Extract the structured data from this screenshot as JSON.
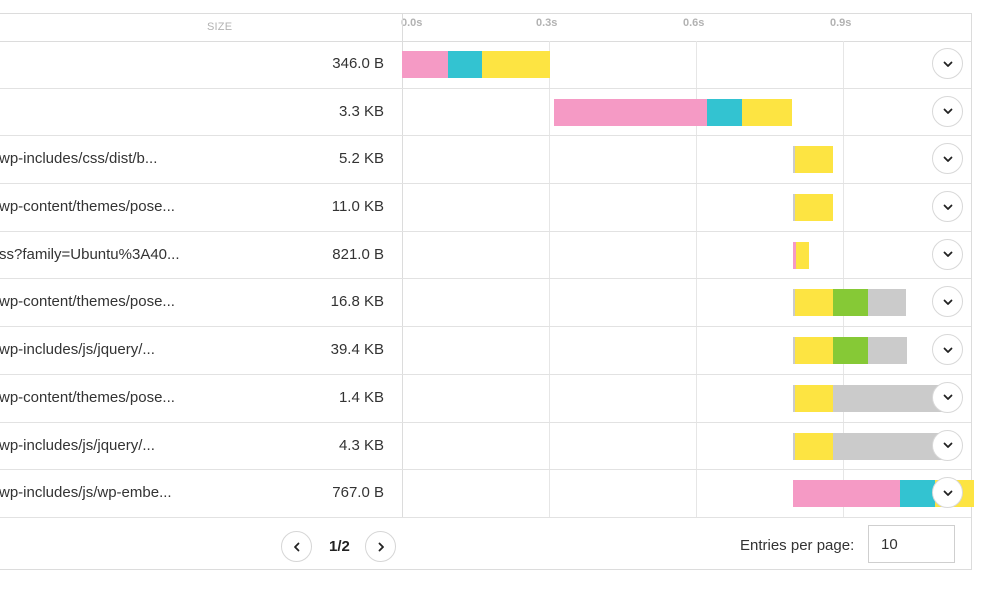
{
  "header": {
    "size_label": "SIZE",
    "ticks": [
      {
        "label": "0.0s"
      },
      {
        "label": "0.3s"
      },
      {
        "label": "0.6s"
      },
      {
        "label": "0.9s"
      }
    ]
  },
  "colors": {
    "phase_a": "#f59ac5",
    "phase_b": "#33c3d1",
    "phase_c": "#fde442",
    "phase_d": "#86c936",
    "phase_e": "#cbcbcb"
  },
  "timeline": {
    "scale_per_second": 490,
    "origin_offset": 403
  },
  "rows": [
    {
      "url": "",
      "size": "346.0 B",
      "start": 0.0,
      "phases": [
        [
          "phase_a",
          0.093
        ],
        [
          "phase_b",
          0.071
        ],
        [
          "phase_c",
          0.138
        ]
      ]
    },
    {
      "url": "",
      "size": "3.3 KB",
      "start": 0.31,
      "phases": [
        [
          "phase_a",
          0.312
        ],
        [
          "phase_b",
          0.071
        ],
        [
          "phase_c",
          0.102
        ]
      ]
    },
    {
      "url": "wp-includes/css/dist/b...",
      "size": "5.2 KB",
      "start": 0.798,
      "phases": [
        [
          "phase_e",
          0.004
        ],
        [
          "phase_c",
          0.078
        ]
      ]
    },
    {
      "url": "wp-content/themes/pose...",
      "size": "11.0 KB",
      "start": 0.798,
      "phases": [
        [
          "phase_e",
          0.004
        ],
        [
          "phase_c",
          0.078
        ]
      ]
    },
    {
      "url": "ss?family=Ubuntu%3A40...",
      "size": "821.0 B",
      "start": 0.798,
      "phases": [
        [
          "phase_a",
          0.006
        ],
        [
          "phase_c",
          0.027
        ]
      ]
    },
    {
      "url": "wp-content/themes/pose...",
      "size": "16.8 KB",
      "start": 0.798,
      "phases": [
        [
          "phase_e",
          0.004
        ],
        [
          "phase_c",
          0.078
        ],
        [
          "phase_d",
          0.071
        ],
        [
          "phase_e",
          0.078
        ]
      ]
    },
    {
      "url": "wp-includes/js/jquery/...",
      "size": "39.4 KB",
      "start": 0.798,
      "phases": [
        [
          "phase_e",
          0.004
        ],
        [
          "phase_c",
          0.078
        ],
        [
          "phase_d",
          0.071
        ],
        [
          "phase_e",
          0.08
        ]
      ]
    },
    {
      "url": "wp-content/themes/pose...",
      "size": "1.4 KB",
      "start": 0.798,
      "phases": [
        [
          "phase_e",
          0.004
        ],
        [
          "phase_c",
          0.078
        ],
        [
          "phase_e",
          0.245
        ]
      ]
    },
    {
      "url": "wp-includes/js/jquery/...",
      "size": "4.3 KB",
      "start": 0.798,
      "phases": [
        [
          "phase_e",
          0.004
        ],
        [
          "phase_c",
          0.078
        ],
        [
          "phase_e",
          0.245
        ]
      ]
    },
    {
      "url": "wp-includes/js/wp-embe...",
      "size": "767.0 B",
      "start": 0.798,
      "phases": [
        [
          "phase_a",
          0.218
        ],
        [
          "phase_b",
          0.071
        ],
        [
          "phase_c",
          0.08
        ]
      ]
    }
  ],
  "pagination": {
    "page_indicator": "1/2"
  },
  "entries": {
    "label": "Entries per page:",
    "value": "10"
  },
  "icons": {
    "expand": "chevron-down-icon",
    "prev": "chevron-left-icon",
    "next": "chevron-right-icon"
  }
}
